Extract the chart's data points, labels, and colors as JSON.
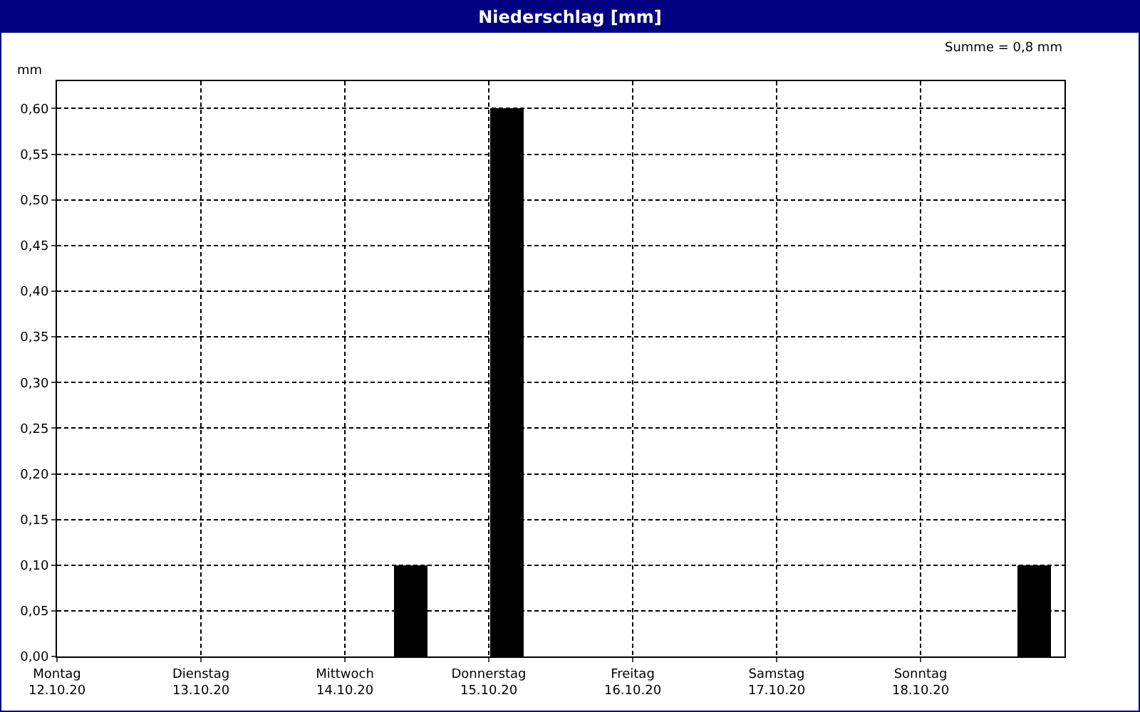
{
  "chart_data": {
    "type": "bar",
    "title": "Niederschlag [mm]",
    "ylabel": "mm",
    "annotations": [
      "Summe = 0,8 mm"
    ],
    "x": [
      "--10-14T11:00",
      "--10-15T03:00",
      "--10-18T19:00"
    ],
    "values": [
      0.1,
      0.6,
      0.1
    ],
    "color": "#000000",
    "xlim": [
      "--10-12",
      "--10-19"
    ],
    "xticks": [
      {
        "value": "--10-12",
        "label": "Montag\n12.10.20"
      },
      {
        "value": "--10-13",
        "label": "Dienstag\n13.10.20"
      },
      {
        "value": "--10-14",
        "label": "Mittwoch\n14.10.20"
      },
      {
        "value": "--10-15",
        "label": "Donnerstag\n15.10.20"
      },
      {
        "value": "--10-16",
        "label": "Freitag\n16.10.20"
      },
      {
        "value": "--10-17",
        "label": "Samstag\n17.10.20"
      },
      {
        "value": "--10-18",
        "label": "Sonntag\n18.10.20"
      }
    ],
    "ylim": [
      0,
      0.63
    ],
    "yticks": [
      {
        "value": 0,
        "label": "0,00"
      },
      {
        "value": 0.05,
        "label": "0,05"
      },
      {
        "value": 0.1,
        "label": "0,10"
      },
      {
        "value": 0.15,
        "label": "0,15"
      },
      {
        "value": 0.2,
        "label": "0,20"
      },
      {
        "value": 0.25,
        "label": "0,25"
      },
      {
        "value": 0.3,
        "label": "0,30"
      },
      {
        "value": 0.35,
        "label": "0,35"
      },
      {
        "value": 0.4,
        "label": "0,40"
      },
      {
        "value": 0.45,
        "label": "0,45"
      },
      {
        "value": 0.5,
        "label": "0,50"
      },
      {
        "value": 0.55,
        "label": "0,55"
      },
      {
        "value": 0.6,
        "label": "0,60"
      }
    ],
    "grid": true
  }
}
